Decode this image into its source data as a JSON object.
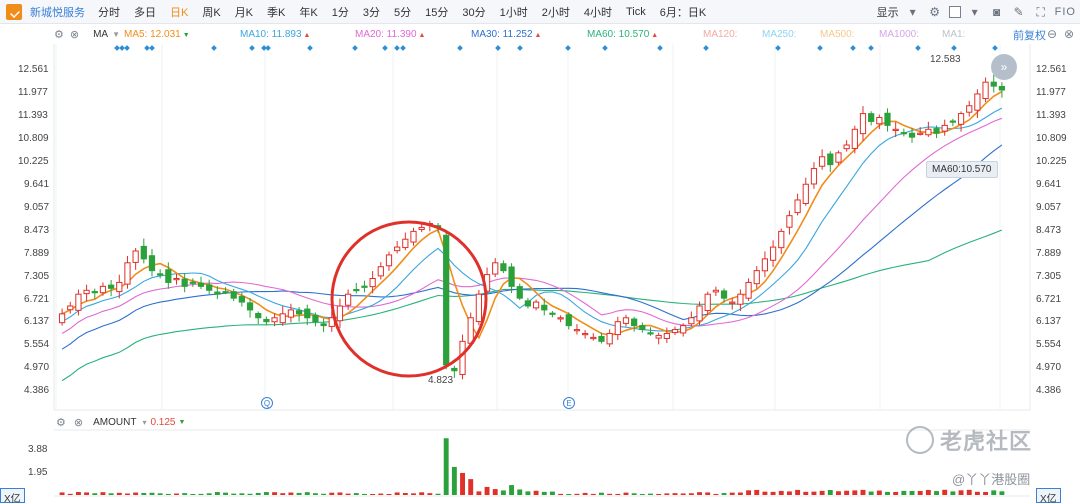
{
  "toolbar": {
    "stock_name": "新城悦服务",
    "timeframes": [
      "分时",
      "多日",
      "日K",
      "周K",
      "月K",
      "季K",
      "年K",
      "1分",
      "3分",
      "5分",
      "15分",
      "30分",
      "1小时",
      "2小时",
      "4小时",
      "Tick",
      "6月：日K"
    ],
    "active_timeframe": "日K",
    "display_label": "显示",
    "fio_label": "FIO"
  },
  "ma_legend": {
    "indicator": "MA",
    "items": [
      {
        "label": "MA5: 12.031",
        "color": "#f08d1a",
        "dir": "down"
      },
      {
        "label": "MA10: 11.893",
        "color": "#3aa6dd",
        "dir": "up"
      },
      {
        "label": "MA20: 11.390",
        "color": "#e06ad2",
        "dir": "up"
      },
      {
        "label": "MA30: 11.252",
        "color": "#2f6fcf",
        "dir": "up"
      },
      {
        "label": "MA60: 10.570",
        "color": "#2ab27b",
        "dir": "up"
      },
      {
        "label": "MA120:",
        "color": "#f4a9a0",
        "dir": ""
      },
      {
        "label": "MA250:",
        "color": "#8fd3f0",
        "dir": ""
      },
      {
        "label": "MA500:",
        "color": "#f5c98a",
        "dir": ""
      },
      {
        "label": "MA1000:",
        "color": "#d4a6e8",
        "dir": ""
      },
      {
        "label": "MA1:",
        "color": "#b9c3cf",
        "dir": ""
      }
    ],
    "fq_label": "前复权"
  },
  "price_axis": [
    "12.561",
    "11.977",
    "11.393",
    "10.809",
    "10.225",
    "9.641",
    "9.057",
    "8.473",
    "7.889",
    "7.305",
    "6.721",
    "6.137",
    "5.554",
    "4.970",
    "4.386"
  ],
  "annotations": {
    "high_label": "12.583",
    "low_label": "4.823",
    "ma60_tag": "MA60:10.570"
  },
  "volume": {
    "name": "AMOUNT",
    "value": "0.125",
    "axis": [
      "3.88",
      "1.95"
    ],
    "unit_left": "X亿",
    "unit_right": "X亿"
  },
  "watermark": {
    "brand": "老虎社区",
    "author": "@丫丫港股圈"
  },
  "chart_data": {
    "type": "candlestick",
    "period": "日K",
    "ylim": [
      4.386,
      12.561
    ],
    "closes": [
      6.3,
      6.5,
      6.8,
      6.9,
      6.85,
      7.0,
      6.95,
      7.1,
      7.6,
      7.9,
      7.7,
      7.4,
      7.3,
      7.1,
      7.2,
      7.0,
      7.1,
      7.0,
      6.9,
      6.8,
      6.85,
      6.7,
      6.6,
      6.4,
      6.2,
      6.1,
      6.2,
      6.3,
      6.4,
      6.3,
      6.2,
      6.1,
      6.0,
      6.2,
      6.5,
      6.8,
      6.9,
      7.0,
      7.2,
      7.5,
      7.8,
      8.0,
      8.2,
      8.4,
      8.5,
      8.6,
      8.5,
      5.0,
      4.85,
      5.6,
      6.2,
      6.8,
      7.3,
      7.6,
      7.4,
      7.0,
      6.7,
      6.5,
      6.6,
      6.4,
      6.3,
      6.2,
      6.0,
      5.9,
      5.8,
      5.7,
      5.6,
      5.8,
      6.1,
      6.2,
      6.0,
      5.9,
      5.8,
      5.75,
      5.8,
      5.9,
      6.0,
      6.2,
      6.5,
      6.8,
      6.9,
      6.7,
      6.6,
      6.8,
      7.1,
      7.4,
      7.7,
      8.0,
      8.4,
      8.8,
      9.2,
      9.6,
      10.0,
      10.3,
      10.1,
      10.4,
      10.6,
      11.0,
      11.4,
      11.2,
      11.3,
      11.1,
      11.0,
      10.9,
      10.8,
      10.9,
      11.0,
      10.9,
      11.1,
      11.2,
      11.4,
      11.6,
      11.9,
      12.2,
      12.1,
      12.0
    ]
  }
}
